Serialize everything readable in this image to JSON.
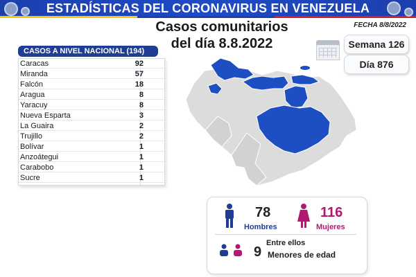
{
  "banner": {
    "title": "ESTADÍSTICAS DEL CORONAVIRUS EN VENEZUELA",
    "colors": {
      "background": "#1d3fae",
      "text": "#ffffff"
    }
  },
  "date_label": "FECHA 8/8/2022",
  "headline": {
    "line1": "Casos comunitarios",
    "line2": "del día 8.8.2022"
  },
  "calendar_icon": "calendar-icon",
  "week": "Semana 126",
  "day": "Día 876",
  "table": {
    "header": "CASOS A NIVEL NACIONAL (194)",
    "header_color": "#1e3d95",
    "rows": [
      {
        "state": "Caracas",
        "cases": "92"
      },
      {
        "state": "Miranda",
        "cases": "57"
      },
      {
        "state": "Falcón",
        "cases": "18"
      },
      {
        "state": "Aragua",
        "cases": "8"
      },
      {
        "state": "Yaracuy",
        "cases": "8"
      },
      {
        "state": "Nueva Esparta",
        "cases": "3"
      },
      {
        "state": "La Guaira",
        "cases": "2"
      },
      {
        "state": "Trujillo",
        "cases": "2"
      },
      {
        "state": "Bolívar",
        "cases": "1"
      },
      {
        "state": "Anzoátegui",
        "cases": "1"
      },
      {
        "state": "Carabobo",
        "cases": "1"
      },
      {
        "state": "Sucre",
        "cases": "1"
      }
    ]
  },
  "map": {
    "highlight_color": "#1e4fc2",
    "base_color": "#dcdcdc"
  },
  "demographics": {
    "men_count": "78",
    "men_label": "Hombres",
    "women_count": "116",
    "women_label": "Mujeres",
    "minors_intro": "Entre ellos",
    "minors_count": "9",
    "minors_label": "Menores de edad",
    "men_color": "#1e3d95",
    "women_color": "#b0196f"
  }
}
